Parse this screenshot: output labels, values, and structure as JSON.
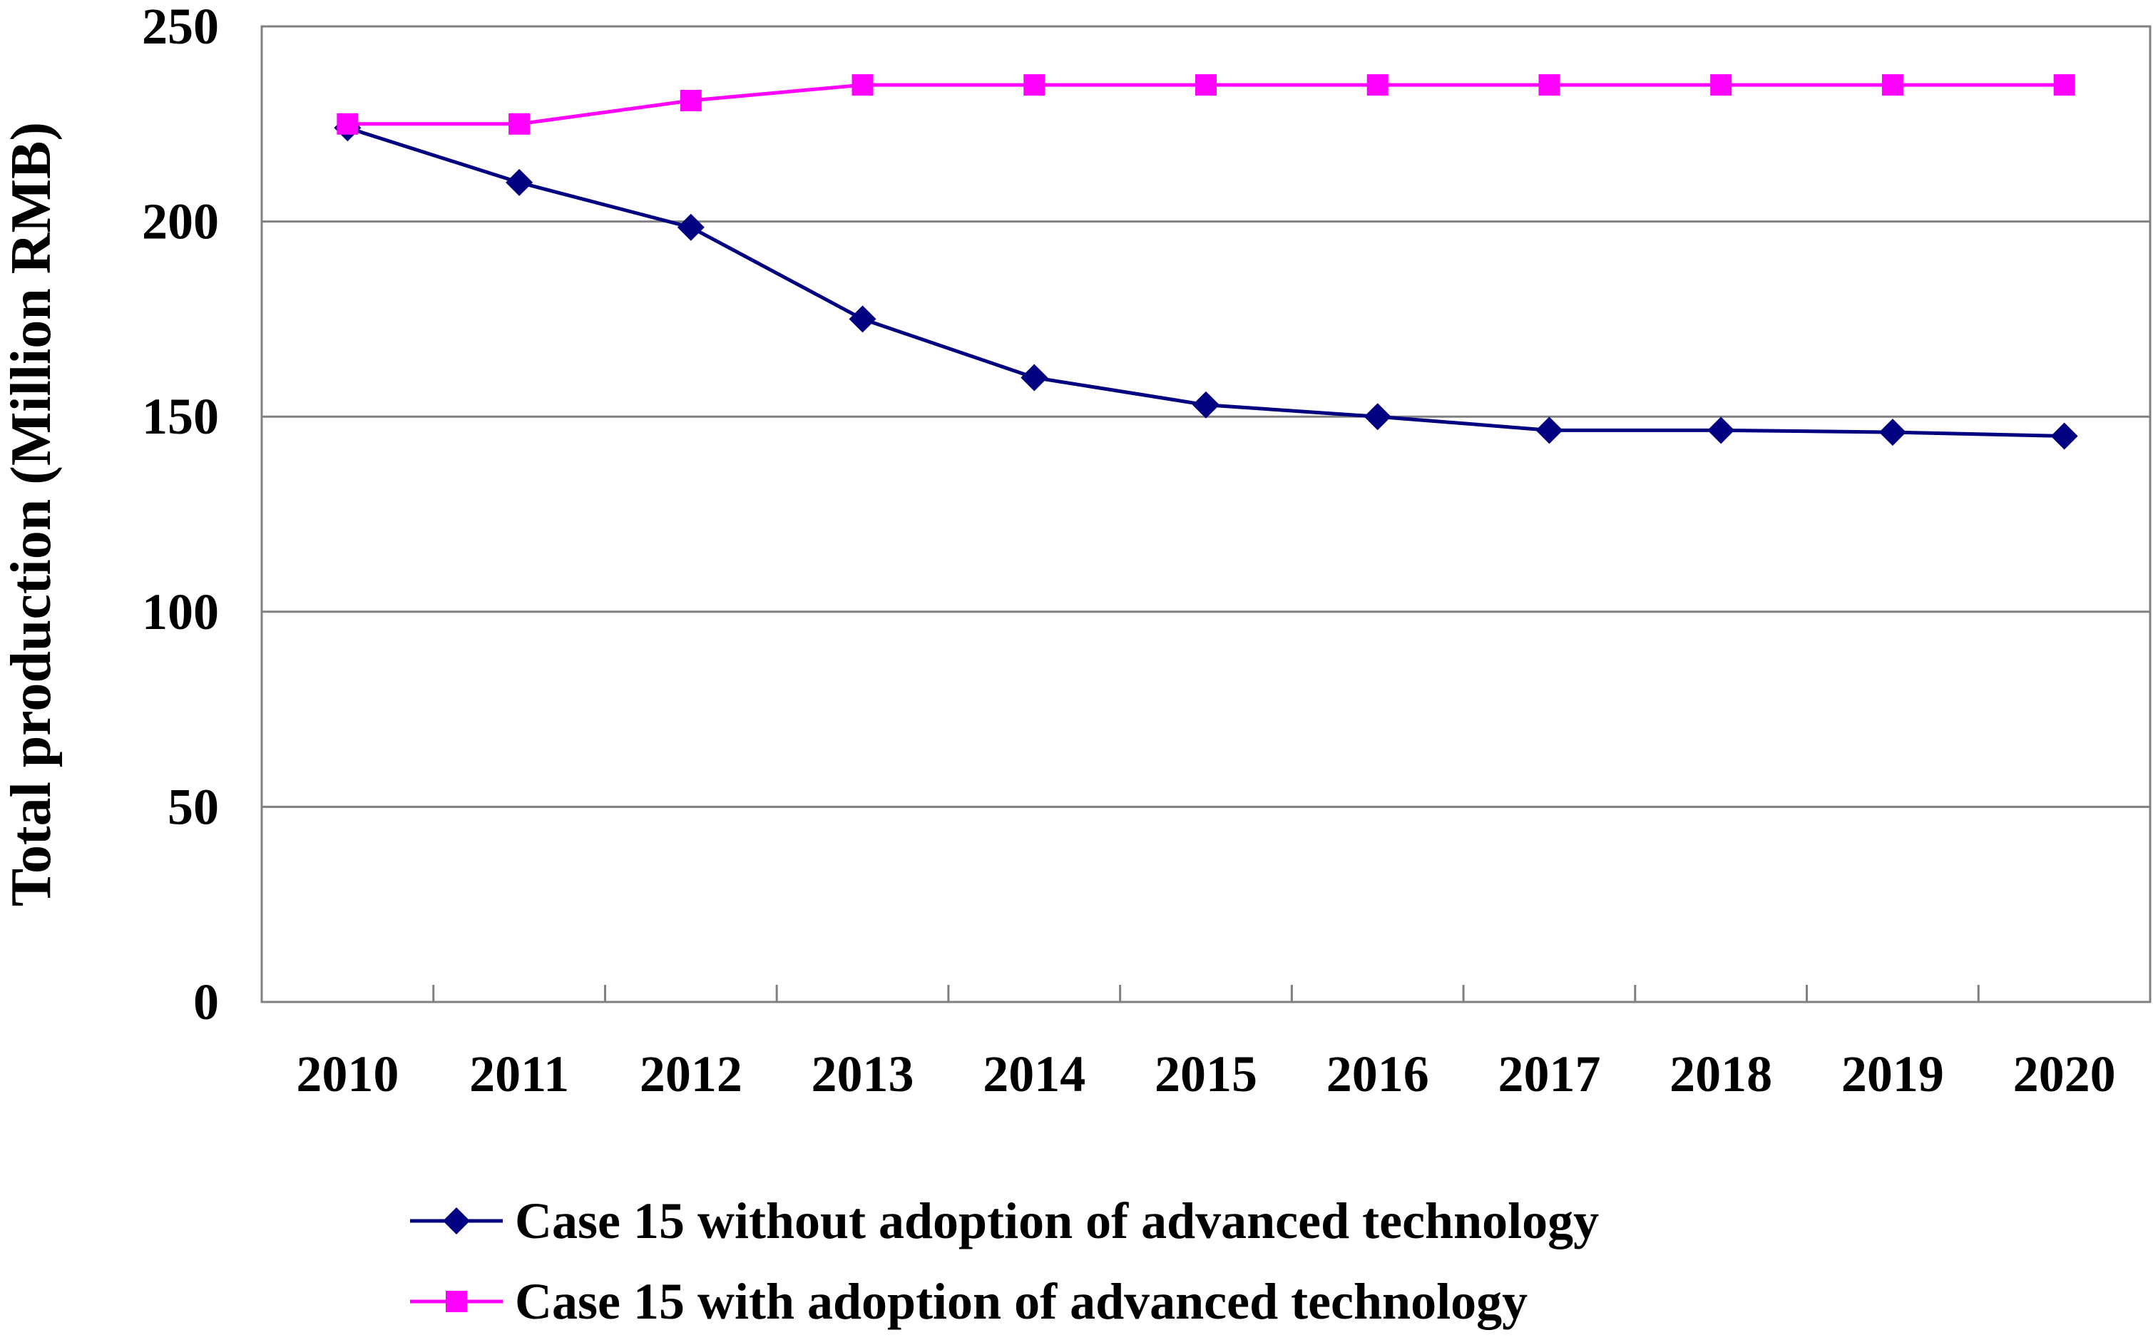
{
  "chart_data": {
    "type": "line",
    "title": "",
    "xlabel": "",
    "ylabel": "Total production (Million RMB)",
    "ylim": [
      0,
      250
    ],
    "yticks": [
      0,
      50,
      100,
      150,
      200,
      250
    ],
    "grid": true,
    "legend_position": "bottom",
    "categories": [
      "2010",
      "2011",
      "2012",
      "2013",
      "2014",
      "2015",
      "2016",
      "2017",
      "2018",
      "2019",
      "2020"
    ],
    "series": [
      {
        "name": "Case 15 without adoption of advanced technology",
        "color": "#000080",
        "marker": "diamond",
        "values": [
          224,
          210,
          198.5,
          175,
          160,
          153,
          150,
          146.5,
          146.5,
          146,
          145
        ]
      },
      {
        "name": "Case 15 with adoption of advanced technology",
        "color": "#FF00FF",
        "marker": "square",
        "values": [
          225,
          225,
          231,
          235,
          235,
          235,
          235,
          235,
          235,
          235,
          235
        ]
      }
    ]
  }
}
